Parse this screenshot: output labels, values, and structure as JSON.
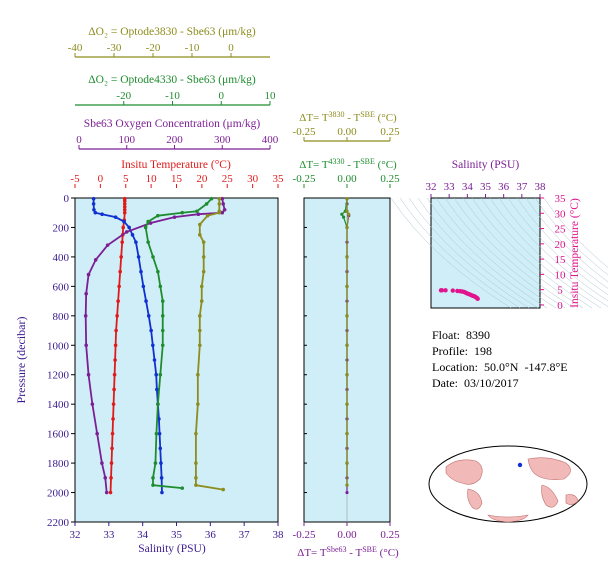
{
  "colors": {
    "background_panel": "#cfeef7",
    "olive": "#8d8d1f",
    "green": "#1f8d2f",
    "purple": "#7b1f94",
    "red": "#e01a1a",
    "blue": "#1030d0",
    "magenta": "#e0148c",
    "axis_text": "#3a1a8f"
  },
  "info": {
    "float": "Float:  8390",
    "profile": "Profile:  198",
    "location": "Location:  50.0°N  -147.8°E",
    "date": "Date:  03/10/2017"
  },
  "chart_data": [
    {
      "type": "line",
      "panel": "main",
      "ylabel": "Pressure (decibar)",
      "y_axis": {
        "range": [
          2200,
          0
        ],
        "ticks": [
          0,
          200,
          400,
          600,
          800,
          1000,
          1200,
          1400,
          1600,
          1800,
          2000,
          2200
        ],
        "inverted": true
      },
      "axes": [
        {
          "key": "sal",
          "label": "Salinity (PSU)",
          "position": "bottom",
          "range": [
            32,
            38
          ],
          "ticks": [
            32,
            33,
            34,
            35,
            36,
            37,
            38
          ],
          "color": "#3a1a8f"
        },
        {
          "key": "temp",
          "label": "Insitu Temperature (°C)",
          "position": "top",
          "range": [
            -5,
            35
          ],
          "ticks": [
            -5,
            0,
            5,
            10,
            15,
            20,
            25,
            30,
            35
          ],
          "color": "#e01a1a"
        },
        {
          "key": "oxy",
          "label": "Sbe63 Oxygen Concentration (μm/kg)",
          "position": "top",
          "range": [
            0,
            400
          ],
          "ticks": [
            0,
            100,
            200,
            300,
            400
          ],
          "color": "#7b1f94"
        },
        {
          "key": "d4330",
          "label": "ΔO₂ = Optode4330 - Sbe63   (μm/kg)",
          "position": "top",
          "range": [
            -30,
            10
          ],
          "ticks": [
            -20,
            -10,
            0,
            10
          ],
          "color": "#1f8d2f"
        },
        {
          "key": "d3830",
          "label": "ΔO₂ = Optode3830 - Sbe63   (μm/kg)",
          "position": "top",
          "range": [
            -40,
            10
          ],
          "ticks": [
            -40,
            -30,
            -20,
            -10,
            0
          ],
          "color": "#8d8d1f"
        }
      ],
      "series": [
        {
          "axis": "temp",
          "color": "#e01a1a",
          "points": [
            [
              4.8,
              5
            ],
            [
              4.8,
              20
            ],
            [
              4.8,
              40
            ],
            [
              4.8,
              60
            ],
            [
              4.8,
              80
            ],
            [
              4.8,
              100
            ],
            [
              4.7,
              150
            ],
            [
              4.5,
              200
            ],
            [
              4.4,
              250
            ],
            [
              4.3,
              300
            ],
            [
              4.1,
              400
            ],
            [
              3.9,
              500
            ],
            [
              3.7,
              600
            ],
            [
              3.5,
              700
            ],
            [
              3.3,
              800
            ],
            [
              3.1,
              900
            ],
            [
              3.0,
              1000
            ],
            [
              2.9,
              1100
            ],
            [
              2.8,
              1200
            ],
            [
              2.7,
              1300
            ],
            [
              2.6,
              1400
            ],
            [
              2.5,
              1500
            ],
            [
              2.4,
              1600
            ],
            [
              2.3,
              1700
            ],
            [
              2.2,
              1800
            ],
            [
              2.1,
              1900
            ],
            [
              2.0,
              2000
            ]
          ]
        },
        {
          "axis": "sal",
          "color": "#1030d0",
          "points": [
            [
              32.55,
              5
            ],
            [
              32.55,
              40
            ],
            [
              32.56,
              80
            ],
            [
              32.6,
              100
            ],
            [
              32.8,
              110
            ],
            [
              33.2,
              130
            ],
            [
              33.45,
              160
            ],
            [
              33.6,
              200
            ],
            [
              33.7,
              250
            ],
            [
              33.8,
              300
            ],
            [
              33.88,
              400
            ],
            [
              33.95,
              500
            ],
            [
              34.02,
              600
            ],
            [
              34.1,
              700
            ],
            [
              34.18,
              800
            ],
            [
              34.25,
              900
            ],
            [
              34.3,
              1000
            ],
            [
              34.35,
              1100
            ],
            [
              34.4,
              1200
            ],
            [
              34.42,
              1300
            ],
            [
              34.45,
              1400
            ],
            [
              34.48,
              1500
            ],
            [
              34.5,
              1600
            ],
            [
              34.52,
              1700
            ],
            [
              34.54,
              1800
            ],
            [
              34.56,
              1900
            ],
            [
              34.57,
              2000
            ]
          ]
        },
        {
          "axis": "oxy",
          "color": "#7b1f94",
          "points": [
            [
              300,
              5
            ],
            [
              302,
              40
            ],
            [
              305,
              80
            ],
            [
              300,
              100
            ],
            [
              250,
              110
            ],
            [
              200,
              130
            ],
            [
              150,
              170
            ],
            [
              100,
              230
            ],
            [
              60,
              320
            ],
            [
              35,
              420
            ],
            [
              20,
              520
            ],
            [
              15,
              650
            ],
            [
              14,
              800
            ],
            [
              15,
              1000
            ],
            [
              20,
              1200
            ],
            [
              28,
              1400
            ],
            [
              38,
              1600
            ],
            [
              48,
              1800
            ],
            [
              55,
              1900
            ],
            [
              58,
              2000
            ]
          ]
        },
        {
          "axis": "d4330",
          "color": "#1f8d2f",
          "points": [
            [
              -2,
              5
            ],
            [
              -3,
              40
            ],
            [
              -5,
              90
            ],
            [
              -8,
              100
            ],
            [
              -13,
              120
            ],
            [
              -15,
              160
            ],
            [
              -15.5,
              200
            ],
            [
              -15,
              300
            ],
            [
              -14,
              400
            ],
            [
              -13,
              500
            ],
            [
              -12.5,
              600
            ],
            [
              -12,
              700
            ],
            [
              -12,
              800
            ],
            [
              -12,
              900
            ],
            [
              -12,
              1000
            ],
            [
              -12.5,
              1200
            ],
            [
              -13,
              1400
            ],
            [
              -13.3,
              1600
            ],
            [
              -13.5,
              1800
            ],
            [
              -14,
              1900
            ],
            [
              -14,
              1950
            ],
            [
              -8,
              1970
            ]
          ]
        },
        {
          "axis": "d3830",
          "color": "#8d8d1f",
          "points": [
            [
              -3,
              5
            ],
            [
              -3,
              40
            ],
            [
              -3,
              90
            ],
            [
              -3,
              100
            ],
            [
              -6,
              120
            ],
            [
              -8,
              180
            ],
            [
              -8,
              250
            ],
            [
              -7,
              300
            ],
            [
              -7,
              400
            ],
            [
              -7,
              500
            ],
            [
              -7.5,
              600
            ],
            [
              -7.5,
              700
            ],
            [
              -8,
              800
            ],
            [
              -8,
              900
            ],
            [
              -8,
              1000
            ],
            [
              -8.5,
              1200
            ],
            [
              -8.5,
              1400
            ],
            [
              -9,
              1600
            ],
            [
              -9,
              1800
            ],
            [
              -9,
              1900
            ],
            [
              -9,
              1950
            ],
            [
              -2,
              1980
            ]
          ]
        }
      ]
    },
    {
      "type": "scatter",
      "panel": "delta_t",
      "y_axis": {
        "range": [
          2200,
          0
        ],
        "inverted": true
      },
      "axes": [
        {
          "key": "dsbe",
          "label": "ΔT= T^Sbe63 - T^SBE (°C)",
          "position": "bottom",
          "range": [
            -0.25,
            0.25
          ],
          "ticks": [
            -0.25,
            0.0,
            0.25
          ],
          "tick_labels": [
            "-0.25",
            "0.00",
            "0.25"
          ],
          "color": "#7b1f94"
        },
        {
          "key": "d4330t",
          "label": "ΔT= T^4330 - T^SBE (°C)",
          "position": "top",
          "range": [
            -0.25,
            0.25
          ],
          "ticks": [
            -0.25,
            0.0,
            0.25
          ],
          "tick_labels": [
            "-0.25",
            "0.00",
            "0.25"
          ],
          "color": "#1f8d2f"
        },
        {
          "key": "d3830t",
          "label": "ΔT= T^3830 - T^SBE (°C)",
          "position": "top",
          "range": [
            -0.25,
            0.25
          ],
          "ticks": [
            -0.25,
            0.0,
            0.25
          ],
          "tick_labels": [
            "-0.25",
            "0.00",
            "0.25"
          ],
          "color": "#8d8d1f"
        }
      ],
      "series": [
        {
          "axis": "dsbe",
          "color": "#7b1f94",
          "points": [
            [
              0.0,
              5
            ],
            [
              0.0,
              40
            ],
            [
              0.0,
              90
            ],
            [
              0.01,
              120
            ],
            [
              0.0,
              200
            ],
            [
              0.0,
              300
            ],
            [
              0.0,
              400
            ],
            [
              0.0,
              500
            ],
            [
              0.0,
              600
            ],
            [
              0.0,
              700
            ],
            [
              0.0,
              800
            ],
            [
              0.0,
              900
            ],
            [
              0.0,
              1000
            ],
            [
              0.0,
              1100
            ],
            [
              0.0,
              1200
            ],
            [
              0.0,
              1300
            ],
            [
              0.0,
              1400
            ],
            [
              0.0,
              1500
            ],
            [
              0.0,
              1600
            ],
            [
              0.0,
              1700
            ],
            [
              0.0,
              1800
            ],
            [
              0.0,
              1900
            ],
            [
              0.0,
              2000
            ]
          ]
        },
        {
          "axis": "d4330t",
          "color": "#1f8d2f",
          "points": [
            [
              0.0,
              5
            ],
            [
              -0.01,
              90
            ],
            [
              -0.03,
              110
            ],
            [
              -0.02,
              130
            ],
            [
              0.0,
              200
            ],
            [
              0.0,
              400
            ],
            [
              0.0,
              600
            ],
            [
              0.0,
              800
            ],
            [
              0.0,
              1000
            ],
            [
              0.0,
              1200
            ],
            [
              0.0,
              1400
            ],
            [
              0.0,
              1600
            ],
            [
              0.0,
              1800
            ],
            [
              0.0,
              1950
            ]
          ]
        },
        {
          "axis": "d3830t",
          "color": "#8d8d1f",
          "points": [
            [
              0.0,
              5
            ],
            [
              0.0,
              90
            ],
            [
              0.01,
              110
            ],
            [
              0.0,
              200
            ],
            [
              0.0,
              400
            ],
            [
              0.0,
              600
            ],
            [
              0.0,
              800
            ],
            [
              0.0,
              1000
            ],
            [
              0.0,
              1200
            ],
            [
              0.0,
              1400
            ],
            [
              0.0,
              1600
            ],
            [
              0.0,
              1800
            ],
            [
              0.0,
              1950
            ]
          ]
        }
      ]
    },
    {
      "type": "scatter",
      "panel": "ts_diagram",
      "xlabel": "Salinity (PSU)",
      "ylabel": "Insitu Temperature (°C)",
      "x_axis": {
        "range": [
          32,
          38
        ],
        "ticks": [
          32,
          33,
          34,
          35,
          36,
          37,
          38
        ],
        "color": "#7b1f94"
      },
      "y_axis": {
        "range": [
          -1,
          35
        ],
        "ticks": [
          0,
          5,
          10,
          15,
          20,
          25,
          30,
          35
        ],
        "color": "#e0148c"
      },
      "series": [
        {
          "color": "#e0148c",
          "points": [
            [
              32.55,
              4.8
            ],
            [
              32.6,
              4.8
            ],
            [
              32.8,
              4.8
            ],
            [
              33.2,
              4.7
            ],
            [
              33.45,
              4.6
            ],
            [
              33.6,
              4.5
            ],
            [
              33.7,
              4.4
            ],
            [
              33.8,
              4.3
            ],
            [
              33.88,
              4.1
            ],
            [
              33.95,
              3.9
            ],
            [
              34.02,
              3.7
            ],
            [
              34.1,
              3.5
            ],
            [
              34.18,
              3.3
            ],
            [
              34.25,
              3.1
            ],
            [
              34.3,
              3.0
            ],
            [
              34.35,
              2.9
            ],
            [
              34.4,
              2.8
            ],
            [
              34.45,
              2.6
            ],
            [
              34.5,
              2.4
            ],
            [
              34.54,
              2.2
            ],
            [
              34.57,
              2.0
            ]
          ]
        }
      ]
    }
  ]
}
